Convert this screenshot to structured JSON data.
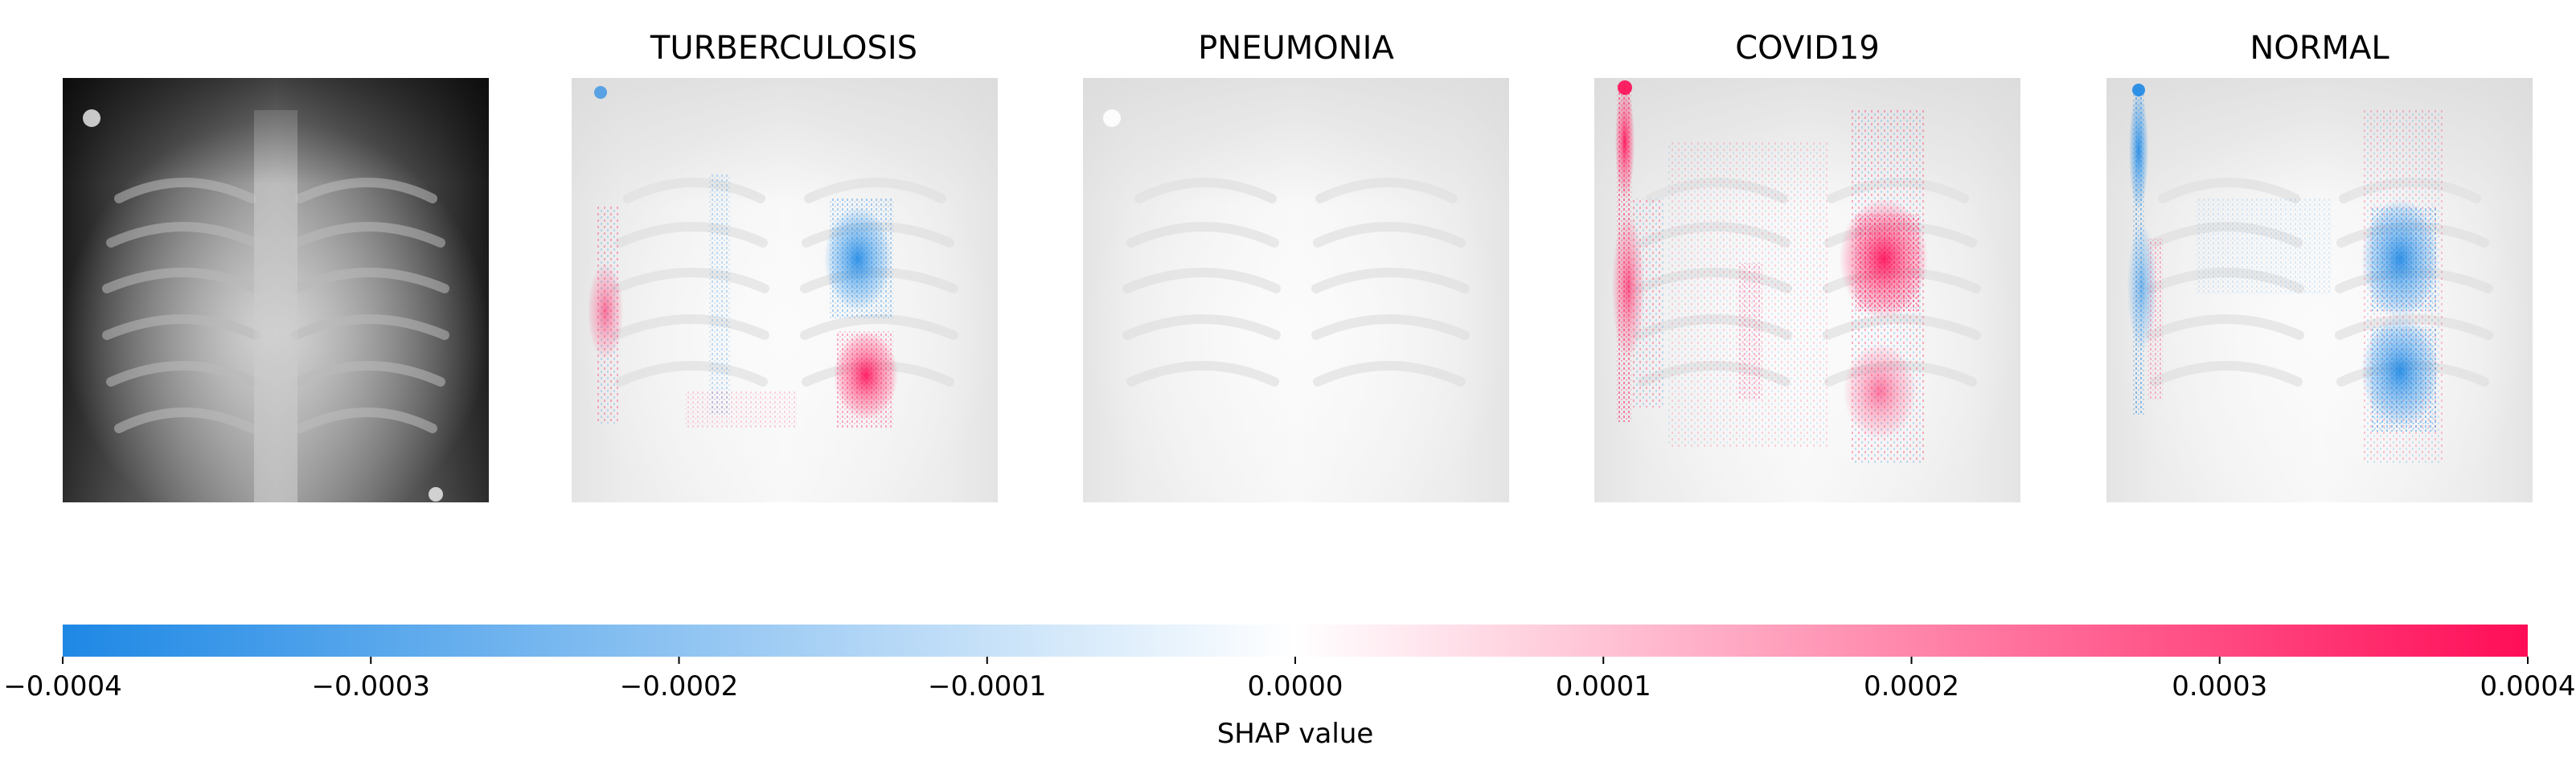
{
  "chart_data": {
    "type": "heatmap",
    "panels": [
      {
        "title": ""
      },
      {
        "title": "TURBERCULOSIS"
      },
      {
        "title": "PNEUMONIA"
      },
      {
        "title": "COVID19"
      },
      {
        "title": "NORMAL"
      }
    ],
    "colorbar": {
      "label": "SHAP value",
      "range": [
        -0.0004,
        0.0004
      ],
      "ticks": [
        -0.0004,
        -0.0003,
        -0.0002,
        -0.0001,
        0.0,
        0.0001,
        0.0002,
        0.0003,
        0.0004
      ],
      "tick_labels": [
        "−0.0004",
        "−0.0003",
        "−0.0002",
        "−0.0001",
        "0.0000",
        "0.0001",
        "0.0002",
        "0.0003",
        "0.0004"
      ],
      "colors": {
        "negative": "#1e88e5",
        "zero": "#ffffff",
        "positive": "#ff0d57"
      }
    }
  }
}
